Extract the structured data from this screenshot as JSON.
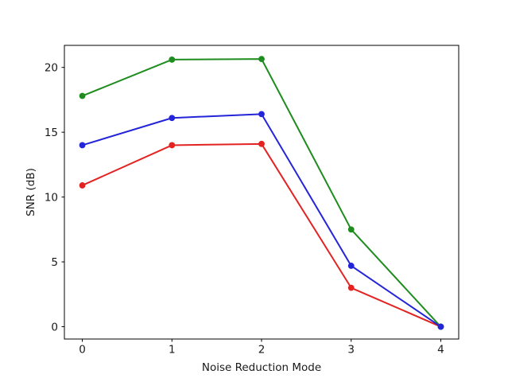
{
  "figure": {
    "background": "#ffffff",
    "spine_color": "#000000",
    "tick_color": "#000000",
    "text_color": "#1a1a1a"
  },
  "chart_data": {
    "type": "line",
    "title": "",
    "xlabel": "Noise Reduction Mode",
    "ylabel": "SNR (dB)",
    "x": [
      0,
      1,
      2,
      3,
      4
    ],
    "xtick_labels": [
      "0",
      "1",
      "2",
      "3",
      "4"
    ],
    "ytick_values": [
      0,
      5,
      10,
      15,
      20
    ],
    "ytick_labels": [
      "0",
      "5",
      "10",
      "15",
      "20"
    ],
    "xlim": [
      -0.2,
      4.2
    ],
    "ylim": [
      -0.95,
      21.7
    ],
    "grid": false,
    "legend": "none",
    "marker": "circle",
    "marker_radius": 3.9,
    "line_width": 2,
    "series": [
      {
        "name": "red-series",
        "color": "#e32322",
        "values": [
          10.9,
          14.0,
          14.1,
          3.0,
          0.0
        ]
      },
      {
        "name": "green-series",
        "color": "#1f8c1f",
        "values": [
          17.8,
          20.6,
          20.65,
          7.5,
          0.0
        ]
      },
      {
        "name": "blue-series",
        "color": "#2424d9",
        "values": [
          14.0,
          16.1,
          16.4,
          4.7,
          0.0
        ]
      }
    ]
  }
}
